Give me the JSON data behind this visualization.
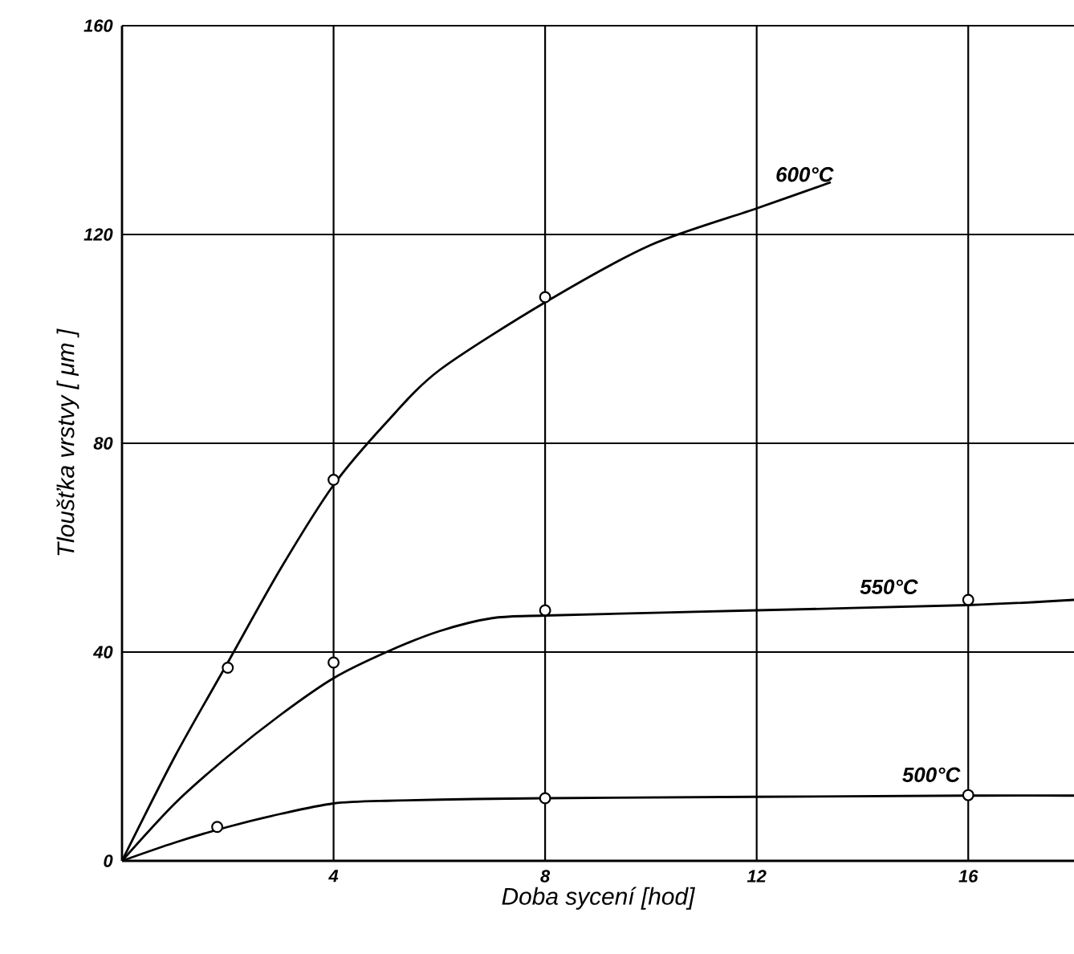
{
  "chart_data": {
    "type": "line",
    "xlabel": "Doba sycení [hod]",
    "ylabel": "Tloušťka vrstvy  [ μm ]",
    "xlim": [
      0,
      18
    ],
    "ylim": [
      0,
      160
    ],
    "xticks": [
      4,
      8,
      12,
      16
    ],
    "yticks": [
      0,
      40,
      80,
      120,
      160
    ],
    "grid": true,
    "series": [
      {
        "name": "600°C",
        "color": "#000000",
        "x": [
          0,
          1,
          2,
          3,
          4,
          5,
          6,
          8,
          10,
          12,
          13.4
        ],
        "values": [
          0,
          20,
          38,
          56,
          72,
          84,
          94,
          107,
          118,
          125,
          130
        ]
      },
      {
        "name": "550°C",
        "color": "#000000",
        "x": [
          0,
          1,
          2,
          3,
          4,
          5,
          6,
          7,
          8,
          12,
          16,
          18
        ],
        "values": [
          0,
          11,
          20,
          28,
          35,
          40,
          44,
          46.5,
          47,
          48,
          49,
          50
        ]
      },
      {
        "name": "500°C",
        "color": "#000000",
        "x": [
          0,
          1,
          2,
          3,
          4,
          5,
          8,
          16,
          18
        ],
        "values": [
          0,
          3.5,
          6.5,
          9,
          11,
          11.5,
          12,
          12.5,
          12.5
        ]
      },
      {
        "type": "scatter",
        "marker": "circle",
        "color": "#000000",
        "x": [
          2,
          4,
          8
        ],
        "values": [
          37,
          73,
          108
        ]
      },
      {
        "type": "scatter",
        "marker": "circle",
        "color": "#000000",
        "x": [
          4,
          8,
          16
        ],
        "values": [
          38,
          48,
          50
        ]
      },
      {
        "type": "scatter",
        "marker": "circle",
        "color": "#000000",
        "x": [
          1.8,
          8,
          16
        ],
        "values": [
          6.5,
          12,
          12.6
        ]
      }
    ]
  }
}
